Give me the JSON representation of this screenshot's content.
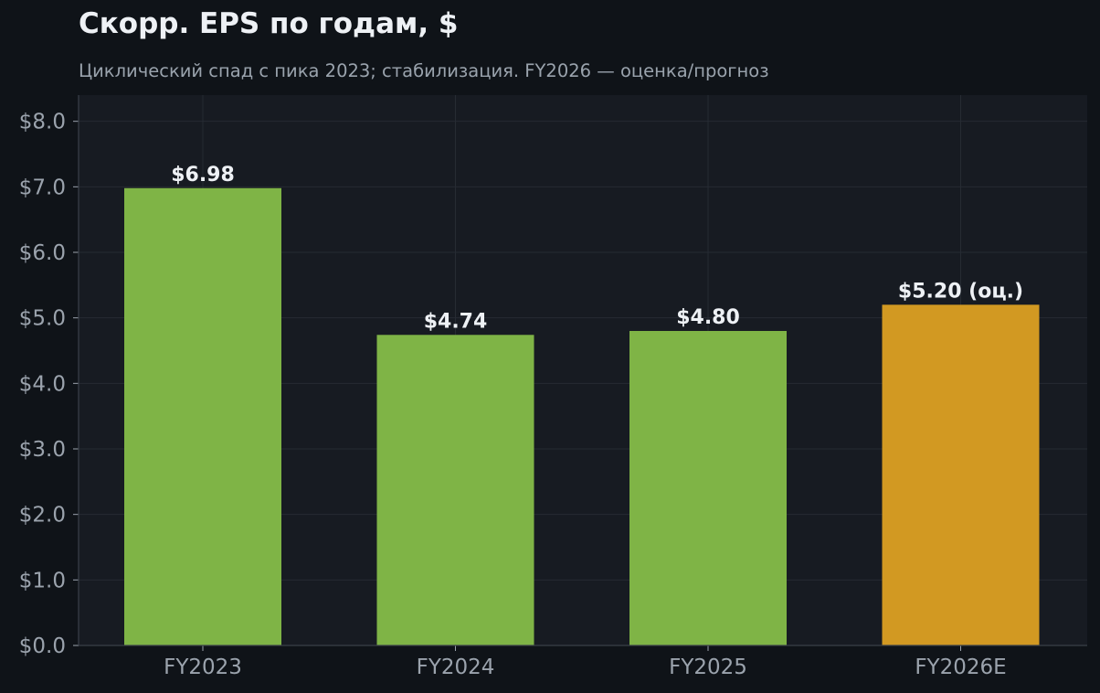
{
  "title": "Скорр. EPS по годам, $",
  "subtitle": "Циклический спад с пика 2023; стабилизация. FY2026 — оценка/прогноз",
  "colors": {
    "page_bg": "#0f1318",
    "plot_bg": "#171b22",
    "actual": "#7fb446",
    "estimate": "#d29922",
    "grid": "#262b33",
    "text": "#eef1f5",
    "muted": "#9ba3ad"
  },
  "chart_data": {
    "type": "bar",
    "categories": [
      "FY2023",
      "FY2024",
      "FY2025",
      "FY2026E"
    ],
    "values": [
      6.98,
      4.74,
      4.8,
      5.2
    ],
    "value_labels": [
      "$6.98",
      "$4.74",
      "$4.80",
      "$5.20 (оц.)"
    ],
    "estimate_flags": [
      false,
      false,
      false,
      true
    ],
    "ylim": [
      0,
      8.4
    ],
    "yticks": [
      0,
      1,
      2,
      3,
      4,
      5,
      6,
      7,
      8
    ],
    "ytick_labels": [
      "$0.0",
      "$1.0",
      "$2.0",
      "$3.0",
      "$4.0",
      "$5.0",
      "$6.0",
      "$7.0",
      "$8.0"
    ],
    "grid": true,
    "xlabel": "",
    "ylabel": ""
  }
}
